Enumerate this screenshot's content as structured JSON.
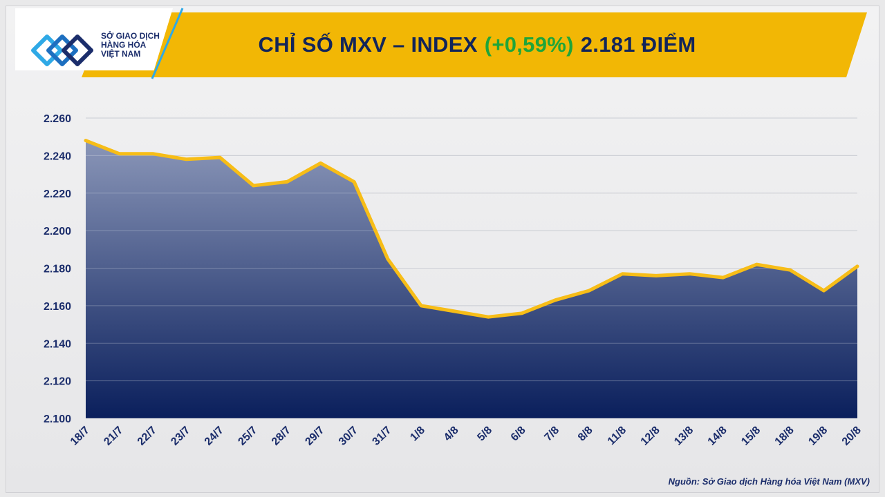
{
  "header": {
    "title_prefix": "CHỈ SỐ MXV – INDEX",
    "title_change": "(+0,59%)",
    "title_suffix": "2.181 ĐIỂM"
  },
  "logo": {
    "line1": "SỞ GIAO DỊCH",
    "line2": "HÀNG HÓA",
    "line3": "VIỆT NAM"
  },
  "source": "Nguồn: Sở Giao dịch Hàng hóa Việt Nam (MXV)",
  "colors": {
    "banner": "#f2b705",
    "title": "#12255a",
    "positive": "#1fa53a",
    "line": "#f7bd17",
    "area_top": "#8a96b8",
    "area_bottom": "#0a1f5c"
  },
  "chart_data": {
    "type": "area",
    "title": "CHỈ SỐ MXV – INDEX (+0,59%) 2.181 ĐIỂM",
    "categories": [
      "18/7",
      "21/7",
      "22/7",
      "23/7",
      "24/7",
      "25/7",
      "28/7",
      "29/7",
      "30/7",
      "31/7",
      "1/8",
      "4/8",
      "5/8",
      "6/8",
      "7/8",
      "8/8",
      "11/8",
      "12/8",
      "13/8",
      "14/8",
      "15/8",
      "18/8",
      "19/8",
      "20/8"
    ],
    "values": [
      2248,
      2241,
      2241,
      2238,
      2239,
      2224,
      2226,
      2236,
      2226,
      2185,
      2160,
      2157,
      2154,
      2156,
      2163,
      2168,
      2177,
      2176,
      2177,
      2175,
      2182,
      2179,
      2168,
      2181
    ],
    "ylim": [
      2100,
      2260
    ],
    "yticks": [
      2100,
      2120,
      2140,
      2160,
      2180,
      2200,
      2220,
      2240,
      2260
    ],
    "ytick_labels": [
      "2.100",
      "2.120",
      "2.140",
      "2.160",
      "2.180",
      "2.200",
      "2.220",
      "2.240",
      "2.260"
    ],
    "grid": true,
    "xlabel": "",
    "ylabel": ""
  }
}
